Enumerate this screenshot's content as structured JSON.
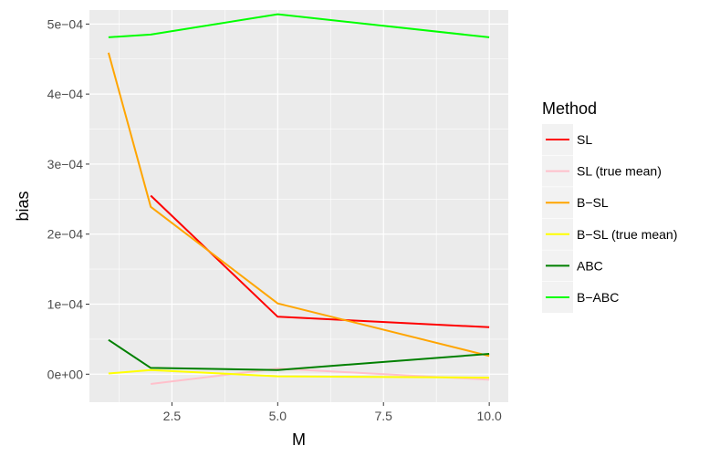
{
  "chart_data": {
    "type": "line",
    "xlabel": "M",
    "ylabel": "bias",
    "xlim": [
      0.55,
      10.45
    ],
    "ylim": [
      -4e-05,
      0.00052
    ],
    "x_ticks": [
      2.5,
      5.0,
      7.5,
      10.0
    ],
    "x_tick_labels": [
      "2.5",
      "5.0",
      "7.5",
      "10.0"
    ],
    "y_ticks": [
      0,
      0.0001,
      0.0002,
      0.0003,
      0.0004,
      0.0005
    ],
    "y_tick_labels": [
      "0e+00",
      "1e−04",
      "2e−04",
      "3e−04",
      "4e−04",
      "5e−04"
    ],
    "grid": true,
    "background": "#ebebeb",
    "legend": {
      "title": "Method",
      "placement": "right"
    },
    "series": [
      {
        "name": "SL",
        "color": "#ff0000",
        "x": [
          2,
          5,
          10
        ],
        "y": [
          0.000255,
          8.2e-05,
          6.7e-05
        ]
      },
      {
        "name": "SL (true mean)",
        "color": "#ffc0cb",
        "x": [
          2,
          5,
          10
        ],
        "y": [
          -1.4e-05,
          8e-06,
          -8e-06
        ]
      },
      {
        "name": "B−SL",
        "color": "#ffa500",
        "x": [
          1,
          2,
          5,
          10
        ],
        "y": [
          0.000459,
          0.000239,
          0.000101,
          2.6e-05
        ]
      },
      {
        "name": "B−SL (true mean)",
        "color": "#ffff00",
        "x": [
          1,
          2,
          5,
          10
        ],
        "y": [
          1e-06,
          6e-06,
          -3e-06,
          -5e-06
        ]
      },
      {
        "name": "ABC",
        "color": "#008000",
        "x": [
          1,
          2,
          5,
          10
        ],
        "y": [
          4.9e-05,
          9e-06,
          6e-06,
          2.9e-05
        ]
      },
      {
        "name": "B−ABC",
        "color": "#00ff00",
        "x": [
          1,
          2,
          5,
          10
        ],
        "y": [
          0.000481,
          0.000485,
          0.000514,
          0.000481
        ]
      }
    ]
  }
}
